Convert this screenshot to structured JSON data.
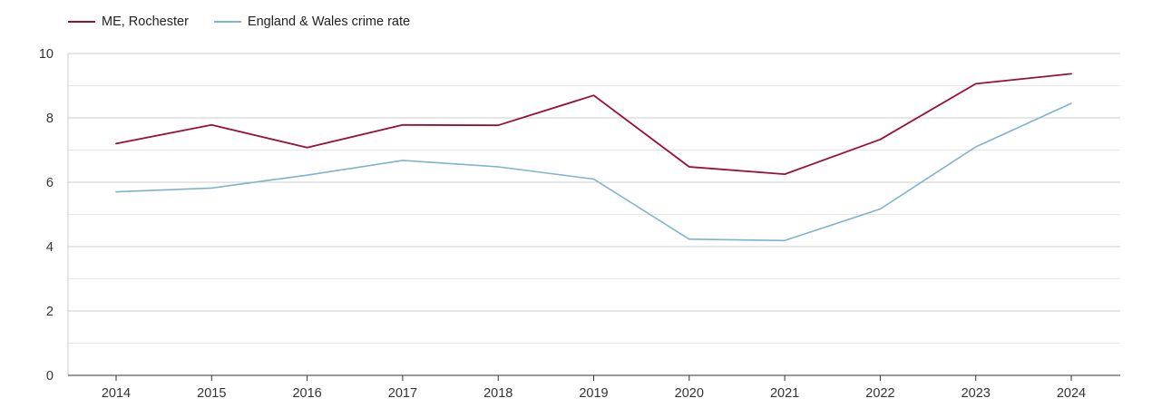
{
  "chart_data": {
    "type": "line",
    "title": "",
    "xlabel": "",
    "ylabel": "",
    "x": [
      "2014",
      "2015",
      "2016",
      "2017",
      "2018",
      "2019",
      "2020",
      "2021",
      "2022",
      "2023",
      "2024"
    ],
    "ylim": [
      0,
      10
    ],
    "yticks": [
      "0",
      "2",
      "4",
      "6",
      "8",
      "10"
    ],
    "grid": true,
    "legend_position": "top-left",
    "series": [
      {
        "name": "ME, Rochester",
        "color": "#9b0e35",
        "values": [
          7.2,
          7.78,
          7.08,
          7.78,
          7.77,
          8.7,
          6.48,
          6.25,
          7.33,
          9.06,
          9.37
        ]
      },
      {
        "name": "England & Wales crime rate",
        "color": "#7fb2d0",
        "values": [
          5.7,
          5.82,
          6.22,
          6.68,
          6.48,
          6.1,
          4.23,
          4.19,
          5.17,
          7.1,
          8.45
        ]
      }
    ]
  }
}
